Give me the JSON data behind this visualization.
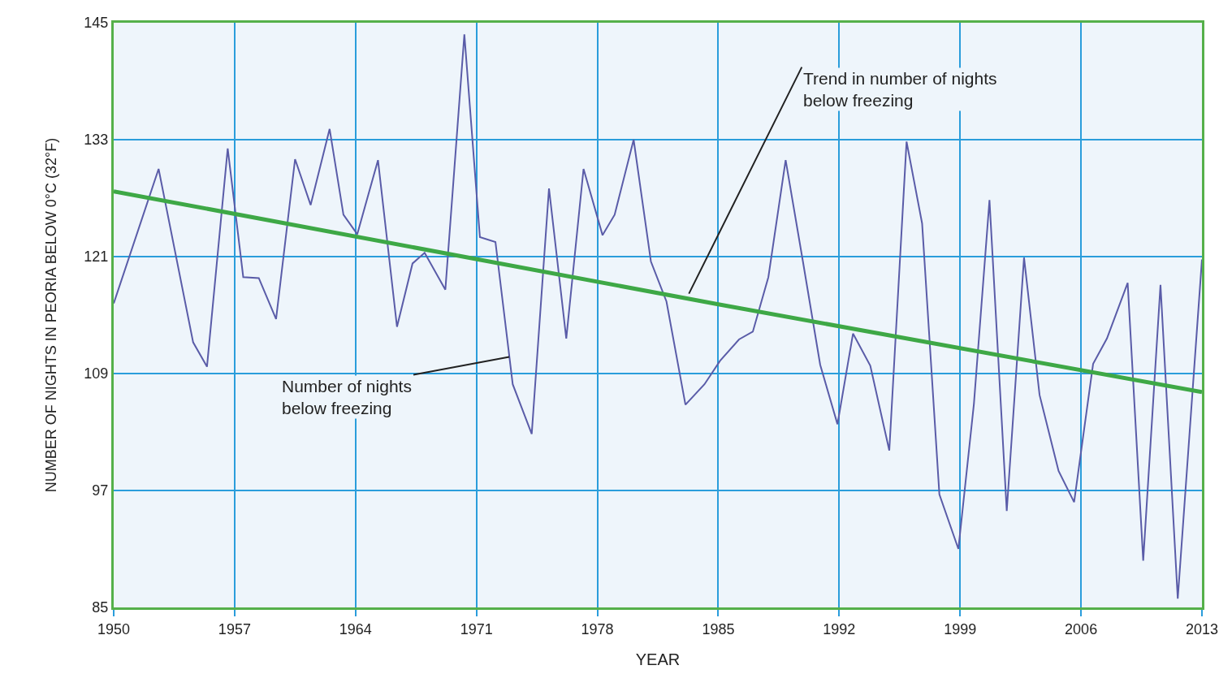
{
  "chart_data": {
    "type": "line",
    "xlabel": "YEAR",
    "ylabel": "NUMBER OF NIGHTS IN PEORIA BELOW 0°C (32°F)",
    "xlim": [
      1950,
      2013
    ],
    "xticks": [
      1950,
      1957,
      1964,
      1971,
      1978,
      1985,
      1992,
      1999,
      2006,
      2013
    ],
    "ylim": [
      85,
      145
    ],
    "yticks": [
      85,
      97,
      109,
      121,
      133,
      145
    ],
    "grid": true,
    "marker": "none",
    "line_style": "solid",
    "series": [
      {
        "color": "#5a5ca8",
        "x": [
          1950,
          1952.6,
          1954.6,
          1955.4,
          1956.6,
          1957.5,
          1958.4,
          1959.4,
          1960.5,
          1961.4,
          1962.5,
          1963.3,
          1964.1,
          1965.3,
          1966.4,
          1967.3,
          1968,
          1969.2,
          1970.3,
          1971.2,
          1972.1,
          1973.1,
          1974.2,
          1975.2,
          1976.2,
          1977.2,
          1978.3,
          1979,
          1980.1,
          1981.1,
          1982,
          1983.1,
          1984.2,
          1985.1,
          1986.2,
          1987,
          1987.9,
          1988.9,
          1989.9,
          1990.9,
          1991.9,
          1992.8,
          1993.8,
          1994.9,
          1995.9,
          1996.8,
          1997.8,
          1998.9,
          1999.8,
          2000.7,
          2001.7,
          2002.7,
          2003.6,
          2004.7,
          2005.6,
          2006.7,
          2007.5,
          2008.7,
          2009.6,
          2010.6,
          2011.6,
          2013
        ],
        "values": [
          116.2,
          130,
          112.2,
          109.7,
          132.1,
          118.9,
          118.8,
          114.6,
          131,
          126.3,
          134.1,
          125.3,
          123.3,
          130.9,
          113.8,
          120.3,
          121.4,
          117.6,
          143.8,
          123,
          122.5,
          107.9,
          102.8,
          128,
          112.6,
          130,
          123.2,
          125.3,
          133,
          120.5,
          116.4,
          105.8,
          107.9,
          110.3,
          112.5,
          113.3,
          118.9,
          130.9,
          120.5,
          109.9,
          103.8,
          113.1,
          109.8,
          101.1,
          132.8,
          124.4,
          96.6,
          91,
          105.9,
          126.8,
          94.9,
          120.9,
          106.8,
          99,
          95.8,
          110,
          112.6,
          118.3,
          89.8,
          118.1,
          85.9,
          120.7
        ]
      },
      {
        "type": "line",
        "color": "#3ea846",
        "x": [
          1950,
          1985,
          2013
        ],
        "values": [
          127.7,
          116.1,
          107.1
        ]
      }
    ],
    "annotations": [
      {
        "text": "Trend in number of nights\nbelow freezing",
        "x": 1983.3,
        "y": 117.2
      },
      {
        "text": "Number of nights\nbelow freezing",
        "x": 1972.9,
        "y": 110.7
      }
    ]
  }
}
